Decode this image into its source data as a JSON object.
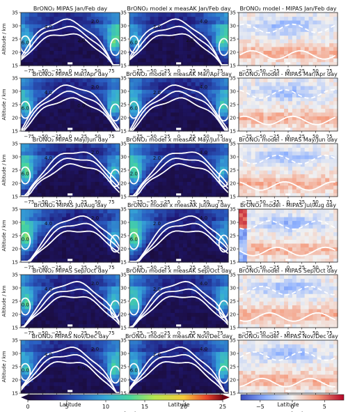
{
  "figure": {
    "ylabel": "Altitude / km",
    "xlabel": "Latitude",
    "row_titles": [
      "Jan/Feb day",
      "Mar/Apr day",
      "May/Jun day",
      "Jul/Aug day",
      "Sep/Oct day",
      "Nov/Dec day"
    ],
    "col_titles": [
      "BrONO₂ MIPAS",
      "BrONO₂ model x measAK",
      "BrONO₂ model - MIPAS"
    ],
    "x_ticks": [
      "−75",
      "−50",
      "−25",
      "0",
      "25",
      "50",
      "75"
    ],
    "y_ticks": [
      "15",
      "20",
      "25",
      "30",
      "35"
    ],
    "cbar_left": {
      "label": "vmr / pptv",
      "ticks": [
        "0",
        "5",
        "10",
        "15",
        "20",
        "25"
      ]
    },
    "cbar_right": {
      "label": "vmr / pptv",
      "ticks": [
        "−5",
        "0",
        "5"
      ]
    }
  },
  "chart_data": {
    "type": "heatmap",
    "xlim": [
      -90,
      90
    ],
    "ylim": [
      15,
      35
    ],
    "x_ticks": [
      -75,
      -50,
      -25,
      0,
      25,
      50,
      75
    ],
    "y_ticks": [
      15,
      20,
      25,
      30,
      35
    ],
    "vmr_range": [
      0,
      25
    ],
    "diff_range": [
      -8,
      8
    ],
    "contour_labels": {
      "col0": [
        [
          "4.0",
          "2.0",
          "6.0",
          "2.0"
        ],
        [
          "4.0",
          "2.0",
          "6.0",
          "0.0"
        ],
        [
          "4.0",
          "2.0",
          "6.0"
        ],
        [
          "4.0",
          "2.0",
          "0.0"
        ],
        [
          "4.0",
          "2.0",
          "0.0"
        ],
        [
          "4.0",
          "2.0",
          "0.0",
          "6.0"
        ]
      ],
      "col1": [
        [
          "2.0",
          "4.0",
          "6.0",
          "2.0"
        ],
        [
          "2.0",
          "4.0",
          "6.0"
        ],
        [
          "2.0",
          "4.0",
          "2.0"
        ],
        [
          "2.0",
          "4.0",
          "6.0"
        ],
        [
          "2.0",
          "4.0"
        ],
        [
          "2.0",
          "4.0",
          "6.0"
        ]
      ]
    }
  }
}
